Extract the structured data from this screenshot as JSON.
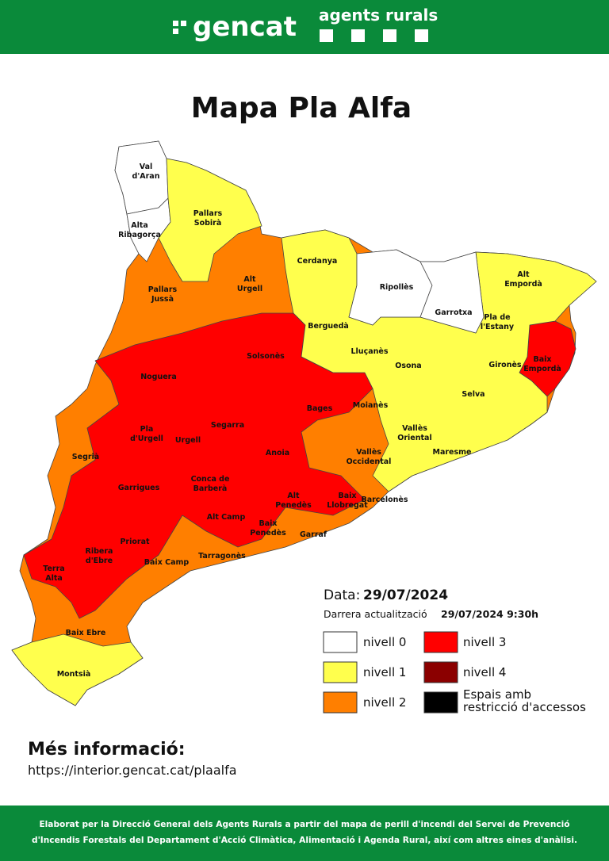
{
  "header": {
    "logo": "gencat",
    "brand": "agents rurals"
  },
  "title": "Mapa Pla Alfa",
  "regions": [
    {
      "label": [
        "Val",
        "d'Aran"
      ]
    },
    {
      "label": [
        "Alta",
        "Ribagorça"
      ]
    },
    {
      "label": [
        "Pallars",
        "Sobirà"
      ]
    },
    {
      "label": [
        "Pallars",
        "Jussà"
      ]
    },
    {
      "label": [
        "Alt",
        "Urgell"
      ]
    },
    {
      "label": [
        "Cerdanya"
      ]
    },
    {
      "label": [
        "Ripollès"
      ]
    },
    {
      "label": [
        "Garrotxa"
      ]
    },
    {
      "label": [
        "Alt",
        "Empordà"
      ]
    },
    {
      "label": [
        "Pla de",
        "l'Estany"
      ]
    },
    {
      "label": [
        "Berguedà"
      ]
    },
    {
      "label": [
        "Solsonès"
      ]
    },
    {
      "label": [
        "Lluçanès"
      ]
    },
    {
      "label": [
        "Osona"
      ]
    },
    {
      "label": [
        "Gironès"
      ]
    },
    {
      "label": [
        "Baix",
        "Empordà"
      ]
    },
    {
      "label": [
        "Noguera"
      ]
    },
    {
      "label": [
        "Bages"
      ]
    },
    {
      "label": [
        "Moianès"
      ]
    },
    {
      "label": [
        "Selva"
      ]
    },
    {
      "label": [
        "Pla",
        "d'Urgell"
      ]
    },
    {
      "label": [
        "Urgell"
      ]
    },
    {
      "label": [
        "Segarra"
      ]
    },
    {
      "label": [
        "Vallès",
        "Oriental"
      ]
    },
    {
      "label": [
        "Segrià"
      ]
    },
    {
      "label": [
        "Anoia"
      ]
    },
    {
      "label": [
        "Vallès",
        "Occidental"
      ]
    },
    {
      "label": [
        "Maresme"
      ]
    },
    {
      "label": [
        "Garrigues"
      ]
    },
    {
      "label": [
        "Conca de",
        "Barberà"
      ]
    },
    {
      "label": [
        "Alt",
        "Penedès"
      ]
    },
    {
      "label": [
        "Baix",
        "Llobregat"
      ]
    },
    {
      "label": [
        "Barcelonès"
      ]
    },
    {
      "label": [
        "Alt Camp"
      ]
    },
    {
      "label": [
        "Priorat"
      ]
    },
    {
      "label": [
        "Baix",
        "Penedès"
      ]
    },
    {
      "label": [
        "Garraf"
      ]
    },
    {
      "label": [
        "Ribera",
        "d'Ebre"
      ]
    },
    {
      "label": [
        "Baix Camp"
      ]
    },
    {
      "label": [
        "Tarragonès"
      ]
    },
    {
      "label": [
        "Terra",
        "Alta"
      ]
    },
    {
      "label": [
        "Baix Ebre"
      ]
    },
    {
      "label": [
        "Montsià"
      ]
    }
  ],
  "legend": {
    "date_label": "Data:",
    "date": "29/07/2024",
    "update_label": "Darrera actualització",
    "update": "29/07/2024 9:30h",
    "items": [
      {
        "label": [
          "nivell 0"
        ],
        "color": "#ffffff"
      },
      {
        "label": [
          "nivell 1"
        ],
        "color": "#ffff4d"
      },
      {
        "label": [
          "nivell 2"
        ],
        "color": "#ff7f00"
      },
      {
        "label": [
          "nivell 3"
        ],
        "color": "#ff0000"
      },
      {
        "label": [
          "nivell 4"
        ],
        "color": "#8b0000"
      },
      {
        "label": [
          "Espais amb",
          "restricció d'accessos"
        ],
        "color": "#000000"
      }
    ]
  },
  "info": {
    "title": "Més informació:",
    "url": "https://interior.gencat.cat/plaalfa"
  },
  "footer": {
    "lines": [
      "Elaborat per la Direcció General dels Agents Rurals a partir del mapa de perill d'incendi del Servei de Prevenció",
      "d'Incendis Forestals del Departament d'Acció Climàtica, Alimentació i Agenda Rural, així com altres eines d'anàlisi."
    ]
  }
}
